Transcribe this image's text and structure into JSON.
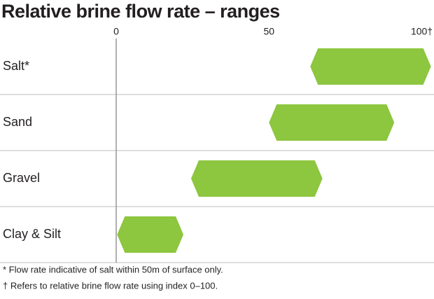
{
  "chart_data": {
    "type": "range",
    "title": "Relative brine flow rate – ranges",
    "categories": [
      "Salt*",
      "Sand",
      "Gravel",
      "Clay & Silt"
    ],
    "low": [
      63.5,
      50,
      24.5,
      0.3
    ],
    "high": [
      103,
      91,
      67.5,
      22
    ],
    "color": "#8dc63f",
    "xlim": [
      0,
      104
    ],
    "xticks": [
      0,
      50,
      {
        "value": 100,
        "label": "100†"
      }
    ],
    "footnotes": [
      "* Flow rate indicative of salt within 50m of surface only.",
      "† Refers to relative brine flow rate using index 0–100."
    ]
  }
}
